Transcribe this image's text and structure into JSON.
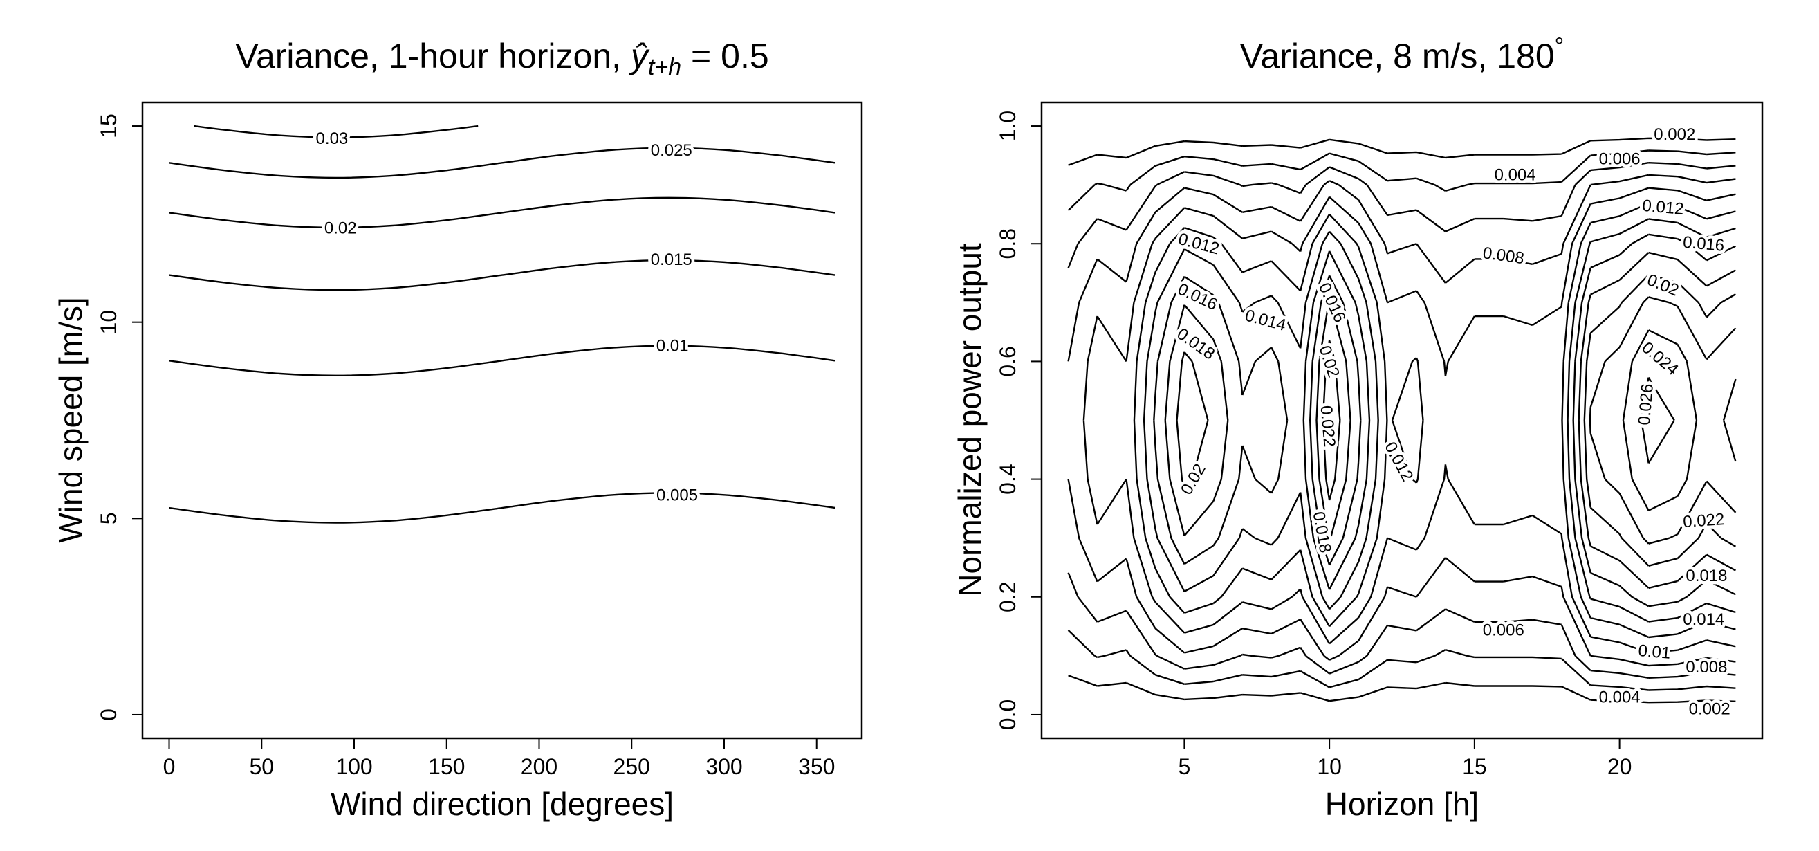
{
  "chart_data": [
    {
      "type": "contour",
      "title": {
        "text": "Variance, 1-hour horizon, ",
        "math_var": "ŷ",
        "math_sub": "t+h",
        "math_rhs": " = 0.5"
      },
      "xlabel": "Wind direction [degrees]",
      "ylabel": "Wind speed [m/s]",
      "xlim": [
        0,
        360
      ],
      "ylim": [
        0,
        15
      ],
      "xticks": [
        0,
        50,
        100,
        150,
        200,
        250,
        300,
        350
      ],
      "xtick_labels": [
        "0",
        "50",
        "100",
        "150",
        "200",
        "250",
        "300",
        "350"
      ],
      "yticks": [
        0,
        5,
        10,
        15
      ],
      "ytick_labels": [
        "0",
        "5",
        "10",
        "15"
      ],
      "grid": false,
      "contours": [
        {
          "level": "0.005",
          "x": [
            0,
            30,
            60,
            90,
            120,
            150,
            180,
            210,
            240,
            270,
            300,
            330,
            360
          ],
          "y": [
            5.27,
            5.08,
            4.94,
            4.89,
            4.94,
            5.08,
            5.27,
            5.46,
            5.6,
            5.65,
            5.6,
            5.46,
            5.27
          ]
        },
        {
          "level": "0.01",
          "x": [
            0,
            30,
            60,
            90,
            120,
            150,
            180,
            210,
            240,
            270,
            300,
            330,
            360
          ],
          "y": [
            9.02,
            8.83,
            8.69,
            8.64,
            8.69,
            8.83,
            9.02,
            9.21,
            9.35,
            9.4,
            9.35,
            9.21,
            9.02
          ]
        },
        {
          "level": "0.015",
          "x": [
            0,
            30,
            60,
            90,
            120,
            150,
            180,
            210,
            240,
            270,
            300,
            330,
            360
          ],
          "y": [
            11.2,
            11.01,
            10.87,
            10.82,
            10.87,
            11.01,
            11.2,
            11.39,
            11.53,
            11.58,
            11.53,
            11.39,
            11.2
          ]
        },
        {
          "level": "0.02",
          "x": [
            0,
            30,
            60,
            90,
            120,
            150,
            180,
            210,
            240,
            270,
            300,
            330,
            360
          ],
          "y": [
            12.79,
            12.6,
            12.46,
            12.41,
            12.46,
            12.6,
            12.79,
            12.98,
            13.12,
            13.17,
            13.12,
            12.98,
            12.79
          ]
        },
        {
          "level": "0.025",
          "x": [
            0,
            30,
            60,
            90,
            120,
            150,
            180,
            210,
            240,
            270,
            300,
            330,
            360
          ],
          "y": [
            14.06,
            13.87,
            13.73,
            13.68,
            13.73,
            13.87,
            14.06,
            14.25,
            14.39,
            14.44,
            14.39,
            14.25,
            14.06
          ]
        },
        {
          "level": "0.03",
          "x": [
            13.5,
            30,
            60,
            90,
            120,
            150,
            167
          ],
          "y": [
            15.0,
            14.9,
            14.76,
            14.71,
            14.76,
            14.9,
            15.0
          ]
        }
      ],
      "labels": [
        {
          "text": "0.03",
          "x": 88,
          "y": 14.68
        },
        {
          "text": "0.025",
          "x": 271.5,
          "y": 14.38
        },
        {
          "text": "0.02",
          "x": 92.6,
          "y": 12.4
        },
        {
          "text": "0.015",
          "x": 271.5,
          "y": 11.6
        },
        {
          "text": "0.01",
          "x": 272,
          "y": 9.4
        },
        {
          "text": "0.005",
          "x": 274.6,
          "y": 5.6
        }
      ]
    },
    {
      "type": "contour",
      "title": {
        "text": "Variance, 8 m/s, 180",
        "sup": "°"
      },
      "xlabel": "Horizon [h]",
      "ylabel": "Normalized power output",
      "xlim": [
        1,
        24
      ],
      "ylim": [
        0,
        1
      ],
      "xticks": [
        5,
        10,
        15,
        20
      ],
      "xtick_labels": [
        "5",
        "10",
        "15",
        "20"
      ],
      "yticks": [
        0,
        0.2,
        0.4,
        0.6,
        0.8,
        1.0
      ],
      "ytick_labels": [
        "0.0",
        "0.2",
        "0.4",
        "0.6",
        "0.8",
        "1.0"
      ],
      "grid": false,
      "levels": [
        0.002,
        0.004,
        0.006,
        0.008,
        0.01,
        0.012,
        0.014,
        0.016,
        0.018,
        0.02,
        0.022,
        0.024,
        0.026
      ],
      "horizon": [
        1,
        2,
        3,
        4,
        5,
        6,
        7,
        8,
        9,
        10,
        11,
        12,
        13,
        14,
        15,
        16,
        17,
        18,
        19,
        20,
        21,
        22,
        23,
        24
      ],
      "power": [
        0,
        0.1,
        0.2,
        0.3,
        0.4,
        0.5,
        0.6,
        0.7,
        0.8,
        0.9,
        1.0
      ],
      "variance": [
        [
          0,
          0.003,
          0.0053,
          0.007,
          0.008,
          0.0083,
          0.008,
          0.007,
          0.0053,
          0.003,
          0
        ],
        [
          0,
          0.0041,
          0.0074,
          0.0097,
          0.011,
          0.0115,
          0.011,
          0.0097,
          0.0074,
          0.0041,
          0
        ],
        [
          0,
          0.0037,
          0.0067,
          0.0087,
          0.01,
          0.0104,
          0.01,
          0.0087,
          0.0067,
          0.0037,
          0
        ],
        [
          0,
          0.0059,
          0.0104,
          0.0137,
          0.0156,
          0.0163,
          0.0156,
          0.0137,
          0.0104,
          0.0059,
          0
        ],
        [
          0,
          0.0077,
          0.0136,
          0.0179,
          0.0204,
          0.0213,
          0.0204,
          0.0179,
          0.0136,
          0.0077,
          0
        ],
        [
          0,
          0.0071,
          0.0126,
          0.0165,
          0.0189,
          0.0197,
          0.0189,
          0.0165,
          0.0126,
          0.0071,
          0
        ],
        [
          0,
          0.0059,
          0.0104,
          0.0137,
          0.0156,
          0.0163,
          0.0156,
          0.0137,
          0.0104,
          0.0059,
          0
        ],
        [
          0,
          0.0062,
          0.011,
          0.0144,
          0.0165,
          0.0172,
          0.0165,
          0.0144,
          0.011,
          0.0062,
          0
        ],
        [
          0,
          0.0054,
          0.0096,
          0.0126,
          0.0144,
          0.015,
          0.0144,
          0.0126,
          0.0096,
          0.0054,
          0
        ],
        [
          0,
          0.0086,
          0.0154,
          0.0202,
          0.023,
          0.024,
          0.023,
          0.0202,
          0.0154,
          0.0086,
          0
        ],
        [
          0,
          0.0067,
          0.0118,
          0.0155,
          0.0178,
          0.0185,
          0.0178,
          0.0155,
          0.0118,
          0.0067,
          0
        ],
        [
          0,
          0.0043,
          0.0076,
          0.01,
          0.0114,
          0.0119,
          0.0114,
          0.01,
          0.0076,
          0.0043,
          0
        ],
        [
          0,
          0.0045,
          0.008,
          0.0105,
          0.0121,
          0.0125,
          0.0121,
          0.0105,
          0.008,
          0.0045,
          0
        ],
        [
          0,
          0.0037,
          0.0066,
          0.0087,
          0.0099,
          0.0103,
          0.0099,
          0.0087,
          0.0066,
          0.0037,
          0
        ],
        [
          0,
          0.0041,
          0.0074,
          0.0097,
          0.011,
          0.0115,
          0.011,
          0.0097,
          0.0074,
          0.0041,
          0
        ],
        [
          0,
          0.0041,
          0.0074,
          0.0097,
          0.011,
          0.0115,
          0.011,
          0.0097,
          0.0074,
          0.0041,
          0
        ],
        [
          0,
          0.0041,
          0.0072,
          0.0095,
          0.0108,
          0.0113,
          0.0108,
          0.0095,
          0.0072,
          0.0041,
          0
        ],
        [
          0,
          0.0042,
          0.0076,
          0.0099,
          0.0113,
          0.0118,
          0.0113,
          0.0099,
          0.0076,
          0.0042,
          0
        ],
        [
          0,
          0.008,
          0.0142,
          0.0186,
          0.0213,
          0.0222,
          0.0213,
          0.0186,
          0.0142,
          0.008,
          0
        ],
        [
          0,
          0.0085,
          0.0151,
          0.0198,
          0.0227,
          0.0236,
          0.0227,
          0.0198,
          0.0151,
          0.0085,
          0
        ],
        [
          0,
          0.0096,
          0.0172,
          0.0225,
          0.0257,
          0.0268,
          0.0257,
          0.0225,
          0.0172,
          0.0096,
          0
        ],
        [
          0,
          0.0093,
          0.0166,
          0.0218,
          0.0249,
          0.0259,
          0.0249,
          0.0218,
          0.0166,
          0.0093,
          0
        ],
        [
          0,
          0.0083,
          0.0147,
          0.0193,
          0.0221,
          0.023,
          0.0221,
          0.0193,
          0.0147,
          0.0083,
          0
        ],
        [
          0,
          0.0089,
          0.0158,
          0.0207,
          0.0237,
          0.0247,
          0.0237,
          0.0207,
          0.0158,
          0.0089,
          0
        ]
      ],
      "labels": [
        {
          "text": "0.002",
          "x": 21.9,
          "y": 0.986
        },
        {
          "text": "0.006",
          "x": 20.0,
          "y": 0.944
        },
        {
          "text": "0.004",
          "x": 16.4,
          "y": 0.917
        },
        {
          "text": "0.012",
          "x": 21.5,
          "y": 0.862
        },
        {
          "text": "0.016",
          "x": 22.9,
          "y": 0.8
        },
        {
          "text": "0.008",
          "x": 16.0,
          "y": 0.78
        },
        {
          "text": "0.012",
          "x": 5.5,
          "y": 0.8
        },
        {
          "text": "0.016",
          "x": 5.46,
          "y": 0.71
        },
        {
          "text": "0.014",
          "x": 7.8,
          "y": 0.67
        },
        {
          "text": "0.018",
          "x": 5.4,
          "y": 0.63
        },
        {
          "text": "0.016",
          "x": 10.1,
          "y": 0.7
        },
        {
          "text": "0.02",
          "x": 10.0,
          "y": 0.6
        },
        {
          "text": "0.022",
          "x": 9.95,
          "y": 0.49
        },
        {
          "text": "0.02",
          "x": 5.3,
          "y": 0.4
        },
        {
          "text": "0.012",
          "x": 12.4,
          "y": 0.43
        },
        {
          "text": "0.018",
          "x": 9.75,
          "y": 0.31
        },
        {
          "text": "0.02",
          "x": 21.5,
          "y": 0.73
        },
        {
          "text": "0.024",
          "x": 21.4,
          "y": 0.605
        },
        {
          "text": "0.026",
          "x": 20.9,
          "y": 0.527
        },
        {
          "text": "0.022",
          "x": 22.9,
          "y": 0.33
        },
        {
          "text": "0.018",
          "x": 23.0,
          "y": 0.236
        },
        {
          "text": "0.014",
          "x": 22.9,
          "y": 0.162
        },
        {
          "text": "0.006",
          "x": 16.0,
          "y": 0.144
        },
        {
          "text": "0.01",
          "x": 21.2,
          "y": 0.107
        },
        {
          "text": "0.008",
          "x": 23.0,
          "y": 0.081
        },
        {
          "text": "0.004",
          "x": 20.0,
          "y": 0.03
        },
        {
          "text": "0.002",
          "x": 23.1,
          "y": 0.01
        }
      ]
    }
  ]
}
